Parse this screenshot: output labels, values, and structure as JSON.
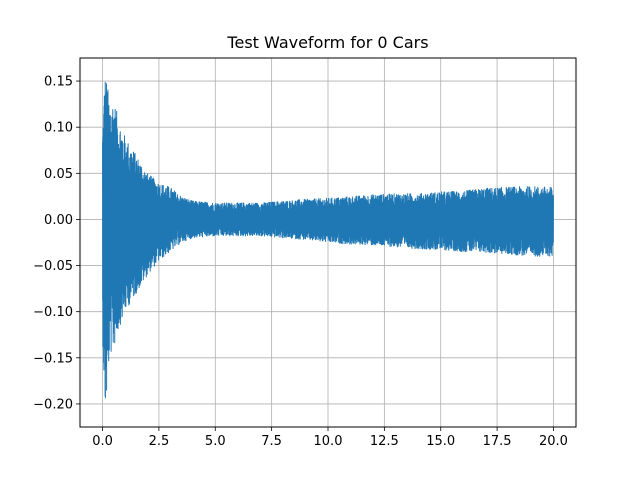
{
  "chart_data": {
    "type": "line",
    "title": "Test Waveform for 0 Cars",
    "xlabel": "",
    "ylabel": "",
    "xlim": [
      -1.0,
      21.0
    ],
    "ylim": [
      -0.225,
      0.175
    ],
    "grid": true,
    "x_ticks": [
      0.0,
      2.5,
      5.0,
      7.5,
      10.0,
      12.5,
      15.0,
      17.5,
      20.0
    ],
    "x_tick_labels": [
      "0.0",
      "2.5",
      "5.0",
      "7.5",
      "10.0",
      "12.5",
      "15.0",
      "17.5",
      "20.0"
    ],
    "y_ticks": [
      -0.2,
      -0.15,
      -0.1,
      -0.05,
      0.0,
      0.05,
      0.1,
      0.15
    ],
    "y_tick_labels": [
      "−0.20",
      "−0.15",
      "−0.10",
      "−0.05",
      "0.00",
      "0.05",
      "0.10",
      "0.15"
    ],
    "series": [
      {
        "color": "#1f77b4",
        "x": [
          0.0,
          0.1,
          0.2,
          0.3,
          0.5,
          0.7,
          1.0,
          1.5,
          2.0,
          2.5,
          3.0,
          3.5,
          4.0,
          5.0,
          6.0,
          7.0,
          8.0,
          9.0,
          10.0,
          11.0,
          12.0,
          13.0,
          14.0,
          15.0,
          16.0,
          17.0,
          18.0,
          19.0,
          20.0
        ],
        "upper": [
          0.1,
          0.16,
          0.15,
          0.13,
          0.13,
          0.11,
          0.09,
          0.07,
          0.05,
          0.04,
          0.035,
          0.025,
          0.02,
          0.018,
          0.018,
          0.018,
          0.02,
          0.022,
          0.023,
          0.025,
          0.027,
          0.028,
          0.028,
          0.03,
          0.031,
          0.034,
          0.035,
          0.036,
          0.035
        ],
        "lower": [
          -0.12,
          -0.21,
          -0.19,
          -0.15,
          -0.14,
          -0.12,
          -0.1,
          -0.08,
          -0.06,
          -0.045,
          -0.035,
          -0.025,
          -0.02,
          -0.018,
          -0.018,
          -0.018,
          -0.02,
          -0.022,
          -0.025,
          -0.027,
          -0.028,
          -0.03,
          -0.032,
          -0.033,
          -0.035,
          -0.036,
          -0.038,
          -0.04,
          -0.04
        ]
      }
    ]
  }
}
